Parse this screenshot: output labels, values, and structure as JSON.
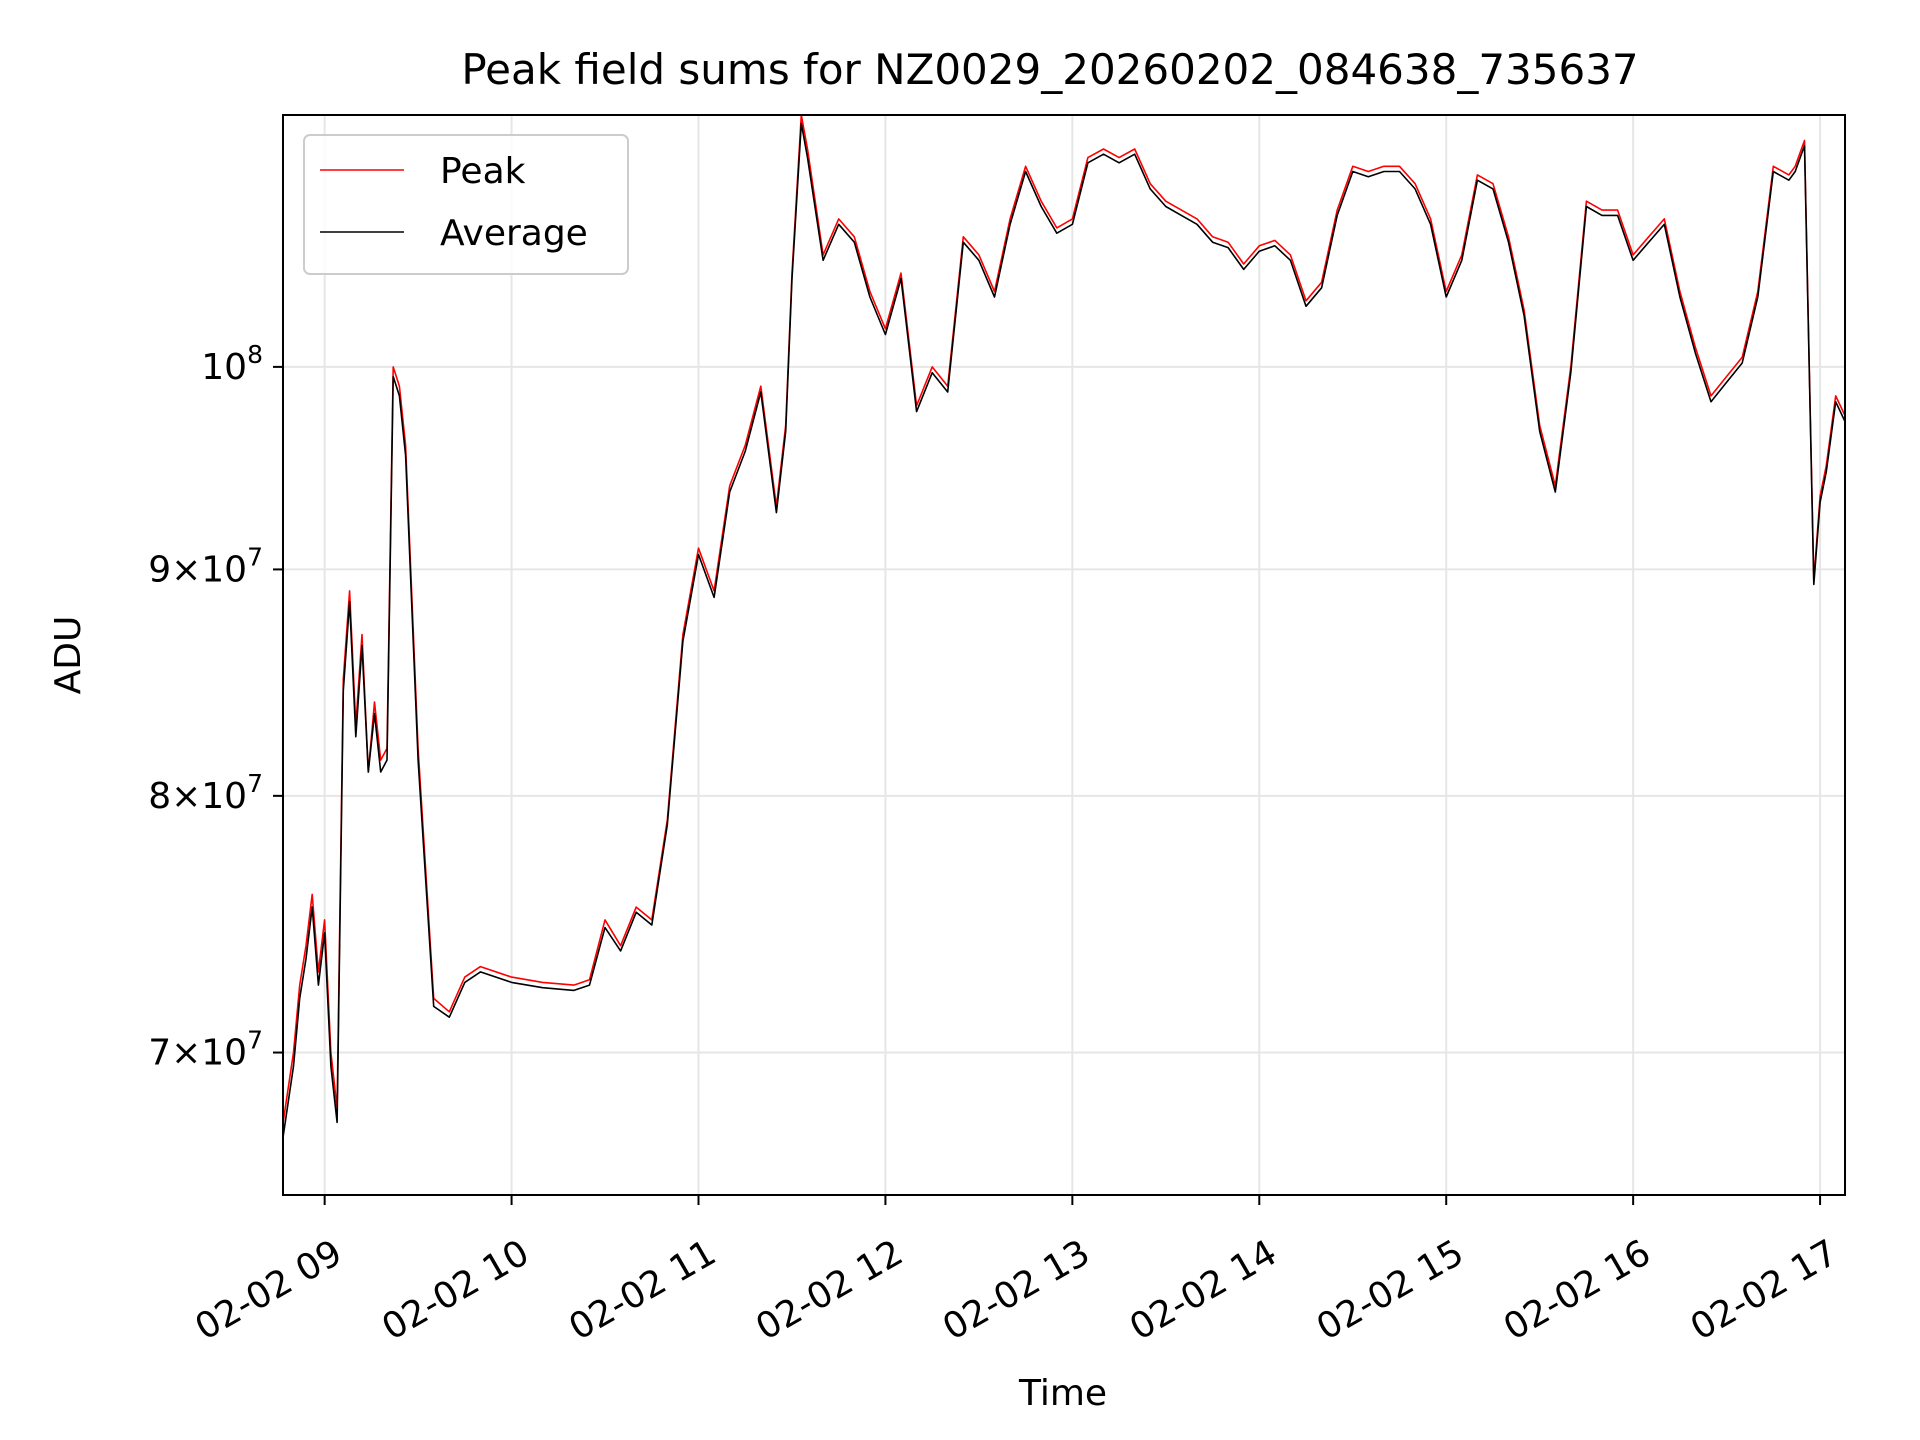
{
  "chart_data": {
    "type": "line",
    "title": "Peak field sums for NZ0029_20260202_084638_735637",
    "xlabel": "Time",
    "ylabel": "ADU",
    "y_scale": "log",
    "xlim": [
      "2026-02-02 08:46:38",
      "2026-02-02 17:08:00"
    ],
    "ylim": [
      65000000,
      114000000
    ],
    "x_ticks": [
      "02-02 09",
      "02-02 10",
      "02-02 11",
      "02-02 12",
      "02-02 13",
      "02-02 14",
      "02-02 15",
      "02-02 16",
      "02-02 17"
    ],
    "y_ticks": [
      {
        "value": 70000000,
        "mantissa": "7",
        "base": "10",
        "exp": "7"
      },
      {
        "value": 80000000,
        "mantissa": "8",
        "base": "10",
        "exp": "7"
      },
      {
        "value": 90000000,
        "mantissa": "9",
        "base": "10",
        "exp": "7"
      },
      {
        "value": 100000000,
        "mantissa": "",
        "base": "10",
        "exp": "8"
      }
    ],
    "grid": true,
    "legend_position": "top-left",
    "series": [
      {
        "name": "Peak",
        "color": "#ff0000"
      },
      {
        "name": "Average",
        "color": "#000000"
      }
    ],
    "x": [
      "08:46",
      "08:48",
      "08:50",
      "08:52",
      "08:54",
      "08:56",
      "08:58",
      "09:00",
      "09:02",
      "09:04",
      "09:06",
      "09:08",
      "09:10",
      "09:12",
      "09:14",
      "09:16",
      "09:18",
      "09:20",
      "09:22",
      "09:24",
      "09:26",
      "09:30",
      "09:35",
      "09:40",
      "09:45",
      "09:50",
      "10:00",
      "10:10",
      "10:20",
      "10:25",
      "10:30",
      "10:35",
      "10:40",
      "10:45",
      "10:50",
      "10:55",
      "11:00",
      "11:05",
      "11:10",
      "11:15",
      "11:20",
      "11:25",
      "11:28",
      "11:30",
      "11:33",
      "11:35",
      "11:40",
      "11:45",
      "11:50",
      "11:55",
      "12:00",
      "12:05",
      "12:10",
      "12:15",
      "12:20",
      "12:25",
      "12:30",
      "12:35",
      "12:40",
      "12:45",
      "12:50",
      "12:55",
      "13:00",
      "13:05",
      "13:10",
      "13:15",
      "13:20",
      "13:25",
      "13:30",
      "13:35",
      "13:40",
      "13:45",
      "13:50",
      "13:55",
      "14:00",
      "14:05",
      "14:10",
      "14:15",
      "14:20",
      "14:25",
      "14:30",
      "14:35",
      "14:40",
      "14:45",
      "14:50",
      "14:55",
      "15:00",
      "15:05",
      "15:10",
      "15:15",
      "15:20",
      "15:25",
      "15:30",
      "15:35",
      "15:40",
      "15:45",
      "15:50",
      "15:55",
      "16:00",
      "16:05",
      "16:10",
      "16:15",
      "16:20",
      "16:25",
      "16:30",
      "16:35",
      "16:40",
      "16:45",
      "16:50",
      "16:52",
      "16:55",
      "16:58",
      "17:00",
      "17:02",
      "17:05",
      "17:08"
    ],
    "y_peak": [
      67000000,
      68500000,
      70000000,
      72500000,
      74000000,
      76000000,
      73000000,
      75000000,
      70000000,
      68000000,
      85000000,
      89000000,
      83000000,
      87000000,
      81000000,
      84000000,
      81500000,
      82000000,
      100000000,
      99000000,
      96000000,
      82000000,
      72000000,
      71500000,
      72800000,
      73200000,
      72800000,
      72600000,
      72500000,
      72700000,
      75000000,
      74000000,
      75500000,
      75000000,
      79000000,
      87000000,
      91000000,
      89000000,
      94000000,
      96000000,
      99000000,
      93000000,
      97000000,
      105000000,
      114000000,
      112000000,
      106000000,
      108000000,
      107000000,
      104000000,
      102000000,
      105000000,
      98000000,
      100000000,
      99000000,
      107000000,
      106000000,
      104000000,
      108000000,
      111000000,
      109000000,
      107500000,
      108000000,
      111500000,
      112000000,
      111500000,
      112000000,
      110000000,
      109000000,
      108500000,
      108000000,
      107000000,
      106700000,
      105500000,
      106500000,
      106800000,
      106000000,
      103500000,
      104500000,
      108500000,
      111000000,
      110700000,
      111000000,
      111000000,
      110000000,
      108000000,
      104000000,
      106000000,
      110500000,
      110000000,
      107000000,
      103000000,
      97000000,
      94000000,
      100000000,
      109000000,
      108500000,
      108500000,
      106000000,
      107000000,
      108000000,
      104000000,
      101000000,
      98500000,
      99500000,
      100500000,
      104000000,
      111000000,
      110500000,
      111000000,
      112500000,
      89500000,
      93500000,
      95000000,
      98500000,
      97500000
    ],
    "y_avg": [
      66500000,
      68000000,
      69500000,
      72000000,
      73500000,
      75500000,
      72500000,
      74500000,
      69500000,
      67500000,
      84500000,
      88500000,
      82500000,
      86500000,
      81000000,
      83500000,
      81000000,
      81500000,
      99500000,
      98500000,
      95500000,
      81500000,
      71700000,
      71300000,
      72600000,
      73000000,
      72600000,
      72400000,
      72300000,
      72500000,
      74700000,
      73800000,
      75300000,
      74800000,
      78800000,
      86700000,
      90700000,
      88700000,
      93700000,
      95700000,
      98700000,
      92700000,
      96700000,
      104700000,
      113500000,
      111500000,
      105700000,
      107700000,
      106700000,
      103700000,
      101700000,
      104700000,
      97700000,
      99700000,
      98700000,
      106700000,
      105700000,
      103700000,
      107700000,
      110700000,
      108700000,
      107200000,
      107700000,
      111200000,
      111700000,
      111200000,
      111700000,
      109700000,
      108700000,
      108200000,
      107700000,
      106700000,
      106400000,
      105200000,
      106200000,
      106500000,
      105700000,
      103200000,
      104200000,
      108200000,
      110700000,
      110400000,
      110700000,
      110700000,
      109700000,
      107700000,
      103700000,
      105700000,
      110200000,
      109700000,
      106700000,
      102700000,
      96700000,
      93700000,
      99700000,
      108700000,
      108200000,
      108200000,
      105700000,
      106700000,
      107700000,
      103700000,
      100700000,
      98200000,
      99200000,
      100200000,
      103700000,
      110700000,
      110200000,
      110700000,
      112200000,
      89300000,
      93200000,
      94700000,
      98200000,
      97200000
    ]
  }
}
